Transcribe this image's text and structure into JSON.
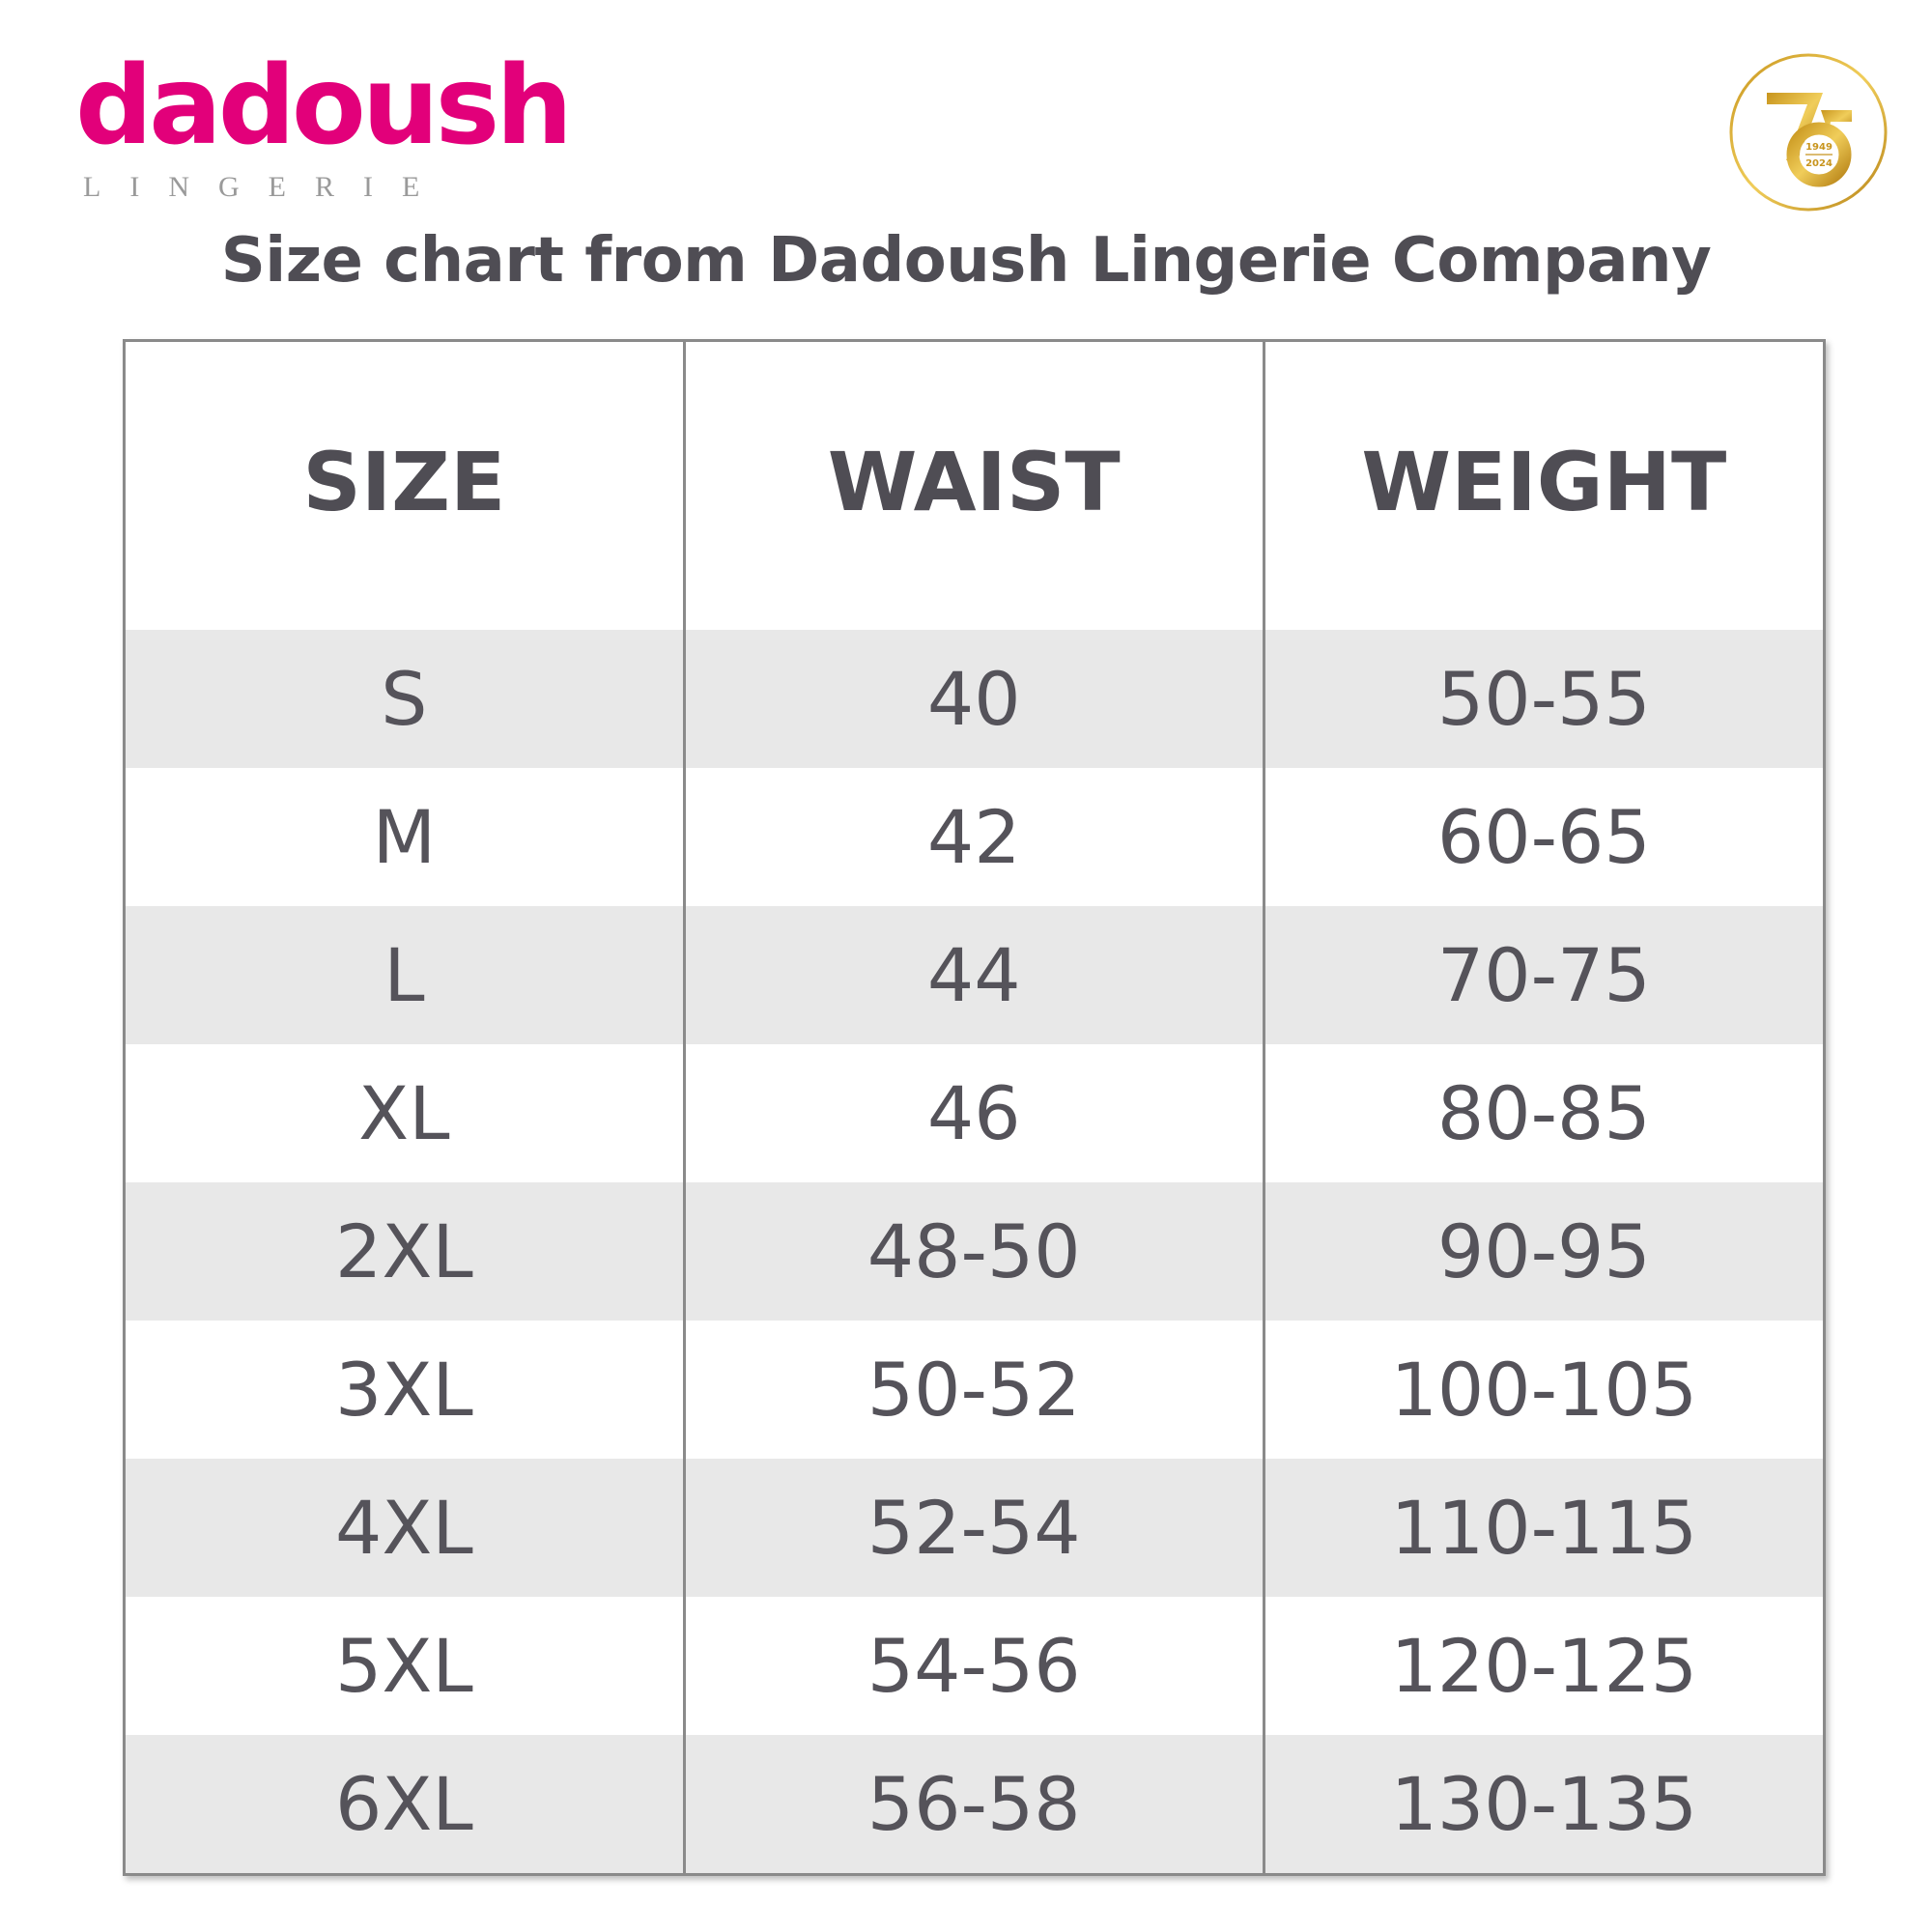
{
  "logo": {
    "brand": "dadoush",
    "subtitle": "LINGERIE",
    "color": "#e2007a"
  },
  "badge": {
    "number": "75",
    "years_top": "1949",
    "years_bottom": "2024",
    "color": "#d4a62a"
  },
  "title": "Size chart from Dadoush Lingerie Company",
  "table": {
    "headers": [
      "SIZE",
      "WAIST",
      "WEIGHT"
    ],
    "rows": [
      [
        "S",
        "40",
        "50-55"
      ],
      [
        "M",
        "42",
        "60-65"
      ],
      [
        "L",
        "44",
        "70-75"
      ],
      [
        "XL",
        "46",
        "80-85"
      ],
      [
        "2XL",
        "48-50",
        "90-95"
      ],
      [
        "3XL",
        "50-52",
        "100-105"
      ],
      [
        "4XL",
        "52-54",
        "110-115"
      ],
      [
        "5XL",
        "54-56",
        "120-125"
      ],
      [
        "6XL",
        "56-58",
        "130-135"
      ]
    ]
  }
}
